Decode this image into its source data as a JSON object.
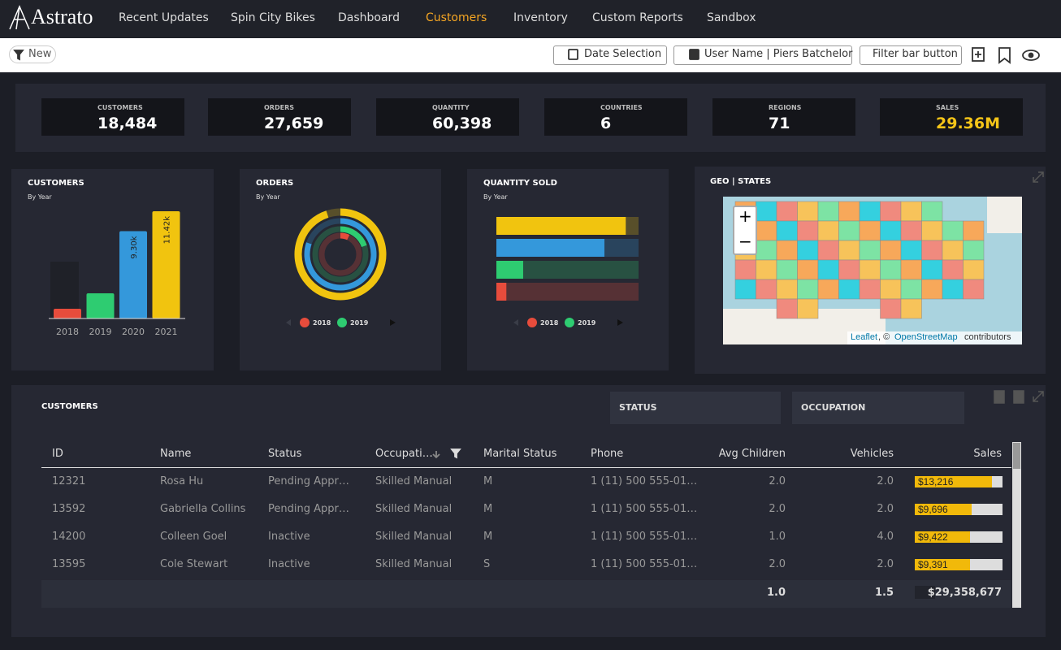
{
  "nav": {
    "logo": "Astrato",
    "items": [
      "Recent Updates",
      "Spin City Bikes",
      "Dashboard",
      "Customers",
      "Inventory",
      "Custom Reports",
      "Sandbox"
    ],
    "active": 3
  },
  "toolbar": {
    "new": "New",
    "buttons": [
      "Date Selection",
      "User Name | Piers Batchelor",
      "Filter bar button"
    ]
  },
  "kpis": [
    {
      "label": "CUSTOMERS",
      "value": "18,484"
    },
    {
      "label": "ORDERS",
      "value": "27,659"
    },
    {
      "label": "QUANTITY",
      "value": "60,398"
    },
    {
      "label": "COUNTRIES",
      "value": "6"
    },
    {
      "label": "REGIONS",
      "value": "71"
    },
    {
      "label": "SALES",
      "value": "29.36M",
      "color": "#f5c518"
    }
  ],
  "chart_data": [
    {
      "type": "bar",
      "title": "CUSTOMERS",
      "subtitle": "By Year",
      "categories": [
        "2018",
        "2019",
        "2020",
        "2021"
      ],
      "values": [
        1040,
        2680,
        9300,
        11420
      ],
      "value_labels": [
        null,
        null,
        "9.30k",
        "11.42k"
      ],
      "colors": [
        "#e74c3c",
        "#2ecc71",
        "#3498db",
        "#f1c40f"
      ]
    },
    {
      "type": "radial",
      "title": "ORDERS",
      "subtitle": "By Year",
      "categories": [
        "2018",
        "2019",
        null,
        null
      ],
      "values": [
        950,
        2700,
        11000,
        13000
      ],
      "colors": [
        "#e74c3c",
        "#2ecc71",
        "#3498db",
        "#f1c40f"
      ]
    },
    {
      "type": "hbar",
      "title": "QUANTITY SOLD",
      "subtitle": "By Year",
      "categories": [
        "2018",
        "2019",
        null,
        null
      ],
      "values": [
        2200,
        5900,
        23800,
        28500
      ],
      "colors": [
        "#e74c3c",
        "#2ecc71",
        "#3498db",
        "#f1c40f"
      ]
    }
  ],
  "map": {
    "title": "GEO | STATES",
    "zoom_in": "+",
    "zoom_out": "−",
    "attribution": [
      "Leaflet",
      ", © ",
      "OpenStreetMap",
      " contributors"
    ]
  },
  "table": {
    "title": "CUSTOMERS",
    "filters": [
      "STATUS",
      "OCCUPATION"
    ],
    "columns": [
      "ID",
      "Name",
      "Status",
      "Occupati…",
      "Marital Status",
      "Phone",
      "Avg Children",
      "Vehicles",
      "Sales"
    ],
    "rows": [
      [
        "12321",
        "Rosa Hu",
        "Pending Appr…",
        "Skilled Manual",
        "M",
        "1 (11) 500 555-01…",
        "2.0",
        "2.0"
      ],
      [
        "13592",
        "Gabriella Collins",
        "Pending Appr…",
        "Skilled Manual",
        "M",
        "1 (11) 500 555-01…",
        "2.0",
        "2.0"
      ],
      [
        "14200",
        "Colleen Goel",
        "Inactive",
        "Skilled Manual",
        "M",
        "1 (11) 500 555-01…",
        "1.0",
        "4.0"
      ],
      [
        "13595",
        "Cole Stewart",
        "Inactive",
        "Skilled Manual",
        "S",
        "1 (11) 500 555-01…",
        "2.0",
        "2.0"
      ]
    ],
    "sales_values": [
      13216,
      9696,
      9422,
      9391
    ],
    "sales_labels": [
      "$13,216",
      "$9,696",
      "$9,422",
      "$9,391"
    ],
    "totals": [
      "1.0",
      "1.5",
      "$29,358,677"
    ]
  }
}
